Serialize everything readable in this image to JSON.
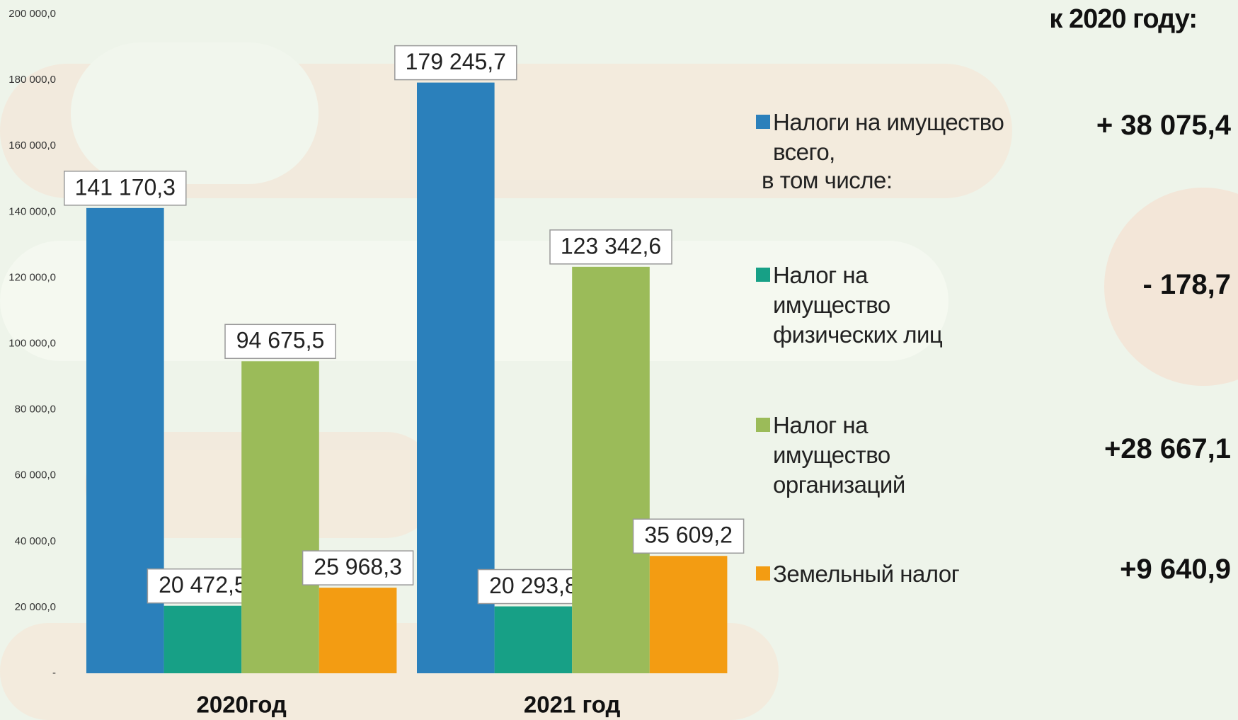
{
  "chart_data": {
    "type": "bar",
    "categories": [
      "2020год",
      "2021 год"
    ],
    "series": [
      {
        "name": "Налоги на имущество всего,",
        "color": "#2b80bb",
        "values": [
          141170.3,
          179245.7
        ],
        "value_labels": [
          "141 170,3",
          "179 245,7"
        ]
      },
      {
        "name": "Налог на имущество физических лиц",
        "color": "#17a086",
        "values": [
          20472.5,
          20293.8
        ],
        "value_labels": [
          "20 472,5",
          "20 293,8"
        ]
      },
      {
        "name": "Налог на имущество организаций",
        "color": "#9bbb59",
        "values": [
          94675.5,
          123342.6
        ],
        "value_labels": [
          "94 675,5",
          "123 342,6"
        ]
      },
      {
        "name": "Земельный налог",
        "color": "#f39c12",
        "values": [
          25968.3,
          35609.2
        ],
        "value_labels": [
          "25 968,3",
          "35 609,2"
        ]
      }
    ],
    "ylim": [
      0,
      200000
    ],
    "yticks": [
      {
        "value": 0,
        "label": "-"
      },
      {
        "value": 20000,
        "label": "20 000,0"
      },
      {
        "value": 40000,
        "label": "40 000,0"
      },
      {
        "value": 60000,
        "label": "60 000,0"
      },
      {
        "value": 80000,
        "label": "80 000,0"
      },
      {
        "value": 100000,
        "label": "100 000,0"
      },
      {
        "value": 120000,
        "label": "120 000,0"
      },
      {
        "value": 140000,
        "label": "140 000,0"
      },
      {
        "value": 160000,
        "label": "160 000,0"
      },
      {
        "value": 180000,
        "label": "180 000,0"
      },
      {
        "value": 200000,
        "label": "200 000,0"
      }
    ],
    "grid": false,
    "changes_title": "к 2020 году:",
    "note": "в том числе:",
    "changes": [
      "+ 38 075,4",
      "- 178,7",
      "+28 667,1",
      "+9 640,9"
    ]
  }
}
